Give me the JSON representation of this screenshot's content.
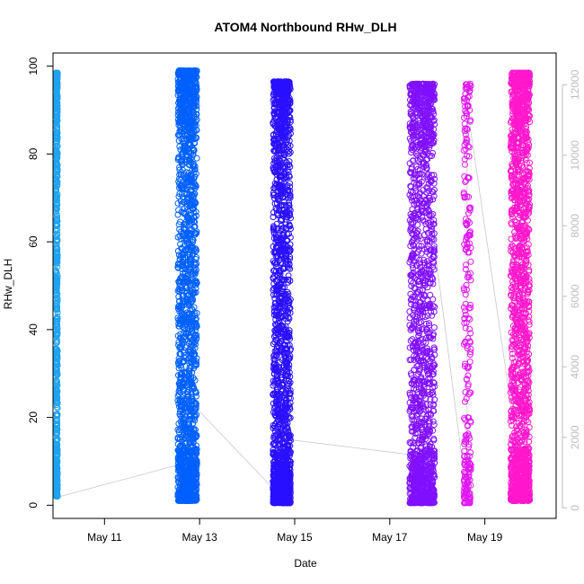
{
  "chart_data": {
    "type": "scatter",
    "title": "ATOM4 Northbound RHw_DLH",
    "xlabel": "Date",
    "ylabel": "RHw_DLH",
    "xlim": [
      "2023-05-09T22:00",
      "2023-05-20T12:00"
    ],
    "ylim": [
      -3,
      103
    ],
    "y2lim": [
      -300,
      12900
    ],
    "x_ticks": [
      {
        "value": "2023-05-11",
        "label": "May 11"
      },
      {
        "value": "2023-05-13",
        "label": "May 13"
      },
      {
        "value": "2023-05-15",
        "label": "May 15"
      },
      {
        "value": "2023-05-17",
        "label": "May 17"
      },
      {
        "value": "2023-05-19",
        "label": "May 19"
      }
    ],
    "y_ticks": [
      0,
      20,
      40,
      60,
      80,
      100
    ],
    "y2_ticks": [
      0,
      2000,
      4000,
      6000,
      8000,
      10000,
      12000
    ],
    "grid": false,
    "legend": "none",
    "background_line_color": "#c8c8c8",
    "series": [
      {
        "color": "#1ea3f0",
        "x_range": [
          "2023-05-09T23:20",
          "2023-05-10T00:20"
        ],
        "y_range": [
          2,
          98.5
        ],
        "count": 700
      },
      {
        "color": "#0060ff",
        "x_range": [
          "2023-05-12T13:00",
          "2023-05-12T22:40"
        ],
        "y_range": [
          1,
          99
        ],
        "count": 1800
      },
      {
        "color": "#2a10ff",
        "x_range": [
          "2023-05-14T13:00",
          "2023-05-14T22:00"
        ],
        "y_range": [
          0.5,
          96.5
        ],
        "count": 1700
      },
      {
        "color": "#8010ff",
        "x_range": [
          "2023-05-17T10:00",
          "2023-05-17T22:40"
        ],
        "y_range": [
          0.5,
          96
        ],
        "count": 1500
      },
      {
        "color": "#e018f0",
        "x_range": [
          "2023-05-18T13:20",
          "2023-05-18T17:00"
        ],
        "y_range": [
          0.5,
          96
        ],
        "count": 260
      },
      {
        "color": "#ff18cc",
        "x_range": [
          "2023-05-19T13:00",
          "2023-05-19T22:40"
        ],
        "y_range": [
          1,
          98.5
        ],
        "count": 1700
      }
    ],
    "secondary_line": {
      "x": [
        "2023-05-10T00:00",
        "2023-05-12T22:00",
        "2023-05-12T22:00",
        "2023-05-14T14:00",
        "2023-05-14T19:00",
        "2023-05-14T19:00",
        "2023-05-17T12:00",
        "2023-05-17T12:00",
        "2023-05-18T15:00",
        "2023-05-18T15:00",
        "2023-05-19T14:00",
        "2023-05-19T14:00"
      ],
      "y": [
        300,
        1350,
        2850,
        500,
        1900,
        1950,
        1500,
        12000,
        300,
        11400,
        2600,
        12400
      ]
    }
  }
}
